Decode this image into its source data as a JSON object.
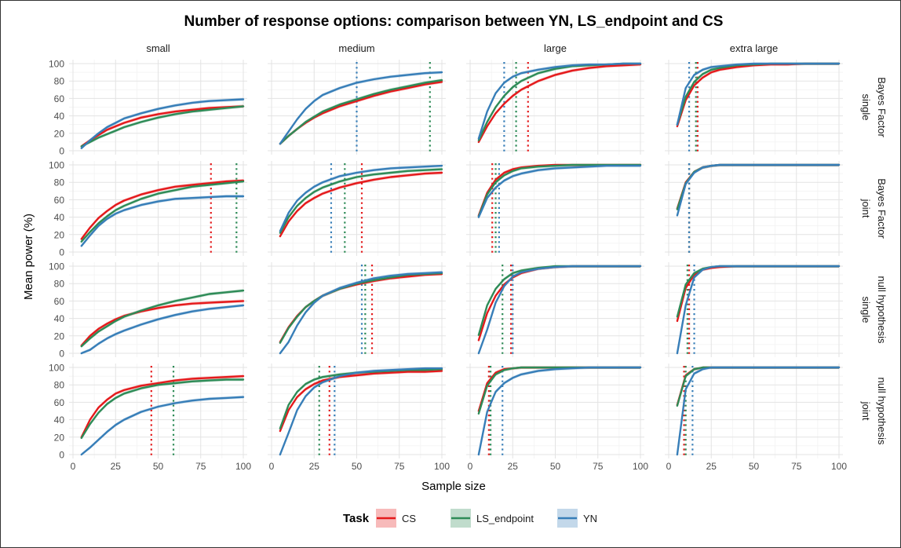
{
  "chart_data": {
    "type": "line",
    "title": "Number of response options: comparison between YN, LS_endpoint and CS",
    "xlabel": "Sample size",
    "ylabel": "Mean power (%)",
    "xlim": [
      0,
      100
    ],
    "ylim": [
      0,
      100
    ],
    "x_ticks": [
      0,
      25,
      50,
      75,
      100
    ],
    "y_ticks": [
      0,
      20,
      40,
      60,
      80,
      100
    ],
    "grid": true,
    "legend": {
      "title": "Task",
      "position": "bottom",
      "entries": [
        "CS",
        "LS_endpoint",
        "YN"
      ]
    },
    "colors": {
      "CS": "#e41a1c",
      "LS_endpoint": "#2e8b57",
      "YN": "#377eb8"
    },
    "col_facets": [
      "small",
      "medium",
      "large",
      "extra large"
    ],
    "row_facets": [
      {
        "label1": "Bayes Factor",
        "label2": "single"
      },
      {
        "label1": "Bayes Factor",
        "label2": "joint"
      },
      {
        "label1": "null hypothesis",
        "label2": "single"
      },
      {
        "label1": "null hypothesis",
        "label2": "joint"
      }
    ],
    "x_sample": [
      5,
      10,
      15,
      20,
      25,
      30,
      40,
      50,
      60,
      70,
      80,
      90,
      100
    ],
    "panels": [
      {
        "row": 0,
        "col": 0,
        "series": [
          {
            "name": "CS",
            "y": [
              5,
              12,
              18,
              24,
              28,
              32,
              38,
              42,
              45,
              47,
              49,
              50,
              51
            ],
            "vline": null
          },
          {
            "name": "LS_endpoint",
            "y": [
              5,
              10,
              15,
              19,
              23,
              27,
              33,
              38,
              42,
              45,
              47,
              49,
              51
            ],
            "vline": null
          },
          {
            "name": "YN",
            "y": [
              3,
              12,
              20,
              27,
              32,
              37,
              43,
              48,
              52,
              55,
              57,
              58,
              59
            ],
            "vline": null
          }
        ]
      },
      {
        "row": 0,
        "col": 1,
        "series": [
          {
            "name": "CS",
            "y": [
              8,
              17,
              25,
              32,
              38,
              43,
              51,
              57,
              63,
              68,
              72,
              76,
              79
            ],
            "vline": null
          },
          {
            "name": "LS_endpoint",
            "y": [
              8,
              17,
              25,
              33,
              39,
              45,
              53,
              59,
              65,
              70,
              74,
              78,
              81
            ],
            "vline": 93
          },
          {
            "name": "YN",
            "y": [
              8,
              22,
              36,
              48,
              57,
              64,
              72,
              78,
              82,
              85,
              87,
              89,
              90
            ],
            "vline": 50
          }
        ]
      },
      {
        "row": 0,
        "col": 2,
        "series": [
          {
            "name": "CS",
            "y": [
              10,
              28,
              43,
              54,
              63,
              70,
              80,
              87,
              92,
              95,
              97,
              98,
              99
            ],
            "vline": 34
          },
          {
            "name": "LS_endpoint",
            "y": [
              12,
              33,
              50,
              63,
              73,
              80,
              89,
              94,
              97,
              98,
              99,
              100,
              100
            ],
            "vline": 27
          },
          {
            "name": "YN",
            "y": [
              14,
              45,
              66,
              78,
              85,
              89,
              93,
              96,
              98,
              99,
              99,
              100,
              100
            ],
            "vline": 20
          }
        ]
      },
      {
        "row": 0,
        "col": 3,
        "series": [
          {
            "name": "CS",
            "y": [
              28,
              58,
              75,
              84,
              90,
              93,
              96,
              98,
              99,
              99,
              100,
              100,
              100
            ],
            "vline": 17
          },
          {
            "name": "LS_endpoint",
            "y": [
              30,
              62,
              79,
              88,
              93,
              95,
              98,
              99,
              100,
              100,
              100,
              100,
              100
            ],
            "vline": 16
          },
          {
            "name": "YN",
            "y": [
              30,
              72,
              87,
              93,
              96,
              97,
              99,
              100,
              100,
              100,
              100,
              100,
              100
            ],
            "vline": 12
          }
        ]
      },
      {
        "row": 1,
        "col": 0,
        "series": [
          {
            "name": "CS",
            "y": [
              15,
              28,
              39,
              47,
              54,
              59,
              66,
              71,
              75,
              77,
              79,
              81,
              82
            ],
            "vline": 81
          },
          {
            "name": "LS_endpoint",
            "y": [
              12,
              23,
              33,
              41,
              48,
              53,
              61,
              67,
              71,
              75,
              77,
              79,
              81
            ],
            "vline": 96
          },
          {
            "name": "YN",
            "y": [
              7,
              19,
              30,
              38,
              44,
              48,
              54,
              58,
              61,
              62,
              63,
              64,
              64
            ],
            "vline": null
          }
        ]
      },
      {
        "row": 1,
        "col": 1,
        "series": [
          {
            "name": "CS",
            "y": [
              18,
              35,
              47,
              56,
              62,
              67,
              74,
              79,
              83,
              86,
              88,
              90,
              91
            ],
            "vline": 53
          },
          {
            "name": "LS_endpoint",
            "y": [
              22,
              40,
              53,
              62,
              69,
              74,
              81,
              86,
              89,
              91,
              93,
              94,
              95
            ],
            "vline": 43
          },
          {
            "name": "YN",
            "y": [
              24,
              45,
              59,
              68,
              75,
              80,
              87,
              91,
              94,
              96,
              97,
              98,
              99
            ],
            "vline": 35
          }
        ]
      },
      {
        "row": 1,
        "col": 2,
        "series": [
          {
            "name": "CS",
            "y": [
              42,
              68,
              83,
              91,
              95,
              97,
              99,
              100,
              100,
              100,
              100,
              100,
              100
            ],
            "vline": 13
          },
          {
            "name": "LS_endpoint",
            "y": [
              41,
              66,
              80,
              88,
              93,
              96,
              98,
              99,
              100,
              100,
              100,
              100,
              100
            ],
            "vline": 15
          },
          {
            "name": "YN",
            "y": [
              40,
              62,
              74,
              82,
              87,
              90,
              94,
              96,
              97,
              98,
              99,
              99,
              99
            ],
            "vline": 17
          }
        ]
      },
      {
        "row": 1,
        "col": 3,
        "series": [
          {
            "name": "CS",
            "y": [
              50,
              80,
              92,
              97,
              99,
              100,
              100,
              100,
              100,
              100,
              100,
              100,
              100
            ],
            "vline": 12
          },
          {
            "name": "LS_endpoint",
            "y": [
              49,
              79,
              92,
              97,
              99,
              100,
              100,
              100,
              100,
              100,
              100,
              100,
              100
            ],
            "vline": 12
          },
          {
            "name": "YN",
            "y": [
              42,
              78,
              91,
              97,
              99,
              100,
              100,
              100,
              100,
              100,
              100,
              100,
              100
            ],
            "vline": 12
          }
        ]
      },
      {
        "row": 2,
        "col": 0,
        "series": [
          {
            "name": "CS",
            "y": [
              9,
              20,
              28,
              34,
              39,
              43,
              48,
              52,
              55,
              57,
              58,
              59,
              60
            ],
            "vline": null
          },
          {
            "name": "LS_endpoint",
            "y": [
              8,
              17,
              25,
              31,
              37,
              42,
              49,
              55,
              60,
              64,
              68,
              70,
              72
            ],
            "vline": null
          },
          {
            "name": "YN",
            "y": [
              0,
              4,
              11,
              17,
              22,
              26,
              33,
              39,
              44,
              48,
              51,
              53,
              55
            ],
            "vline": null
          }
        ]
      },
      {
        "row": 2,
        "col": 1,
        "series": [
          {
            "name": "CS",
            "y": [
              13,
              30,
              43,
              53,
              60,
              66,
              74,
              79,
              83,
              86,
              88,
              90,
              91
            ],
            "vline": 59
          },
          {
            "name": "LS_endpoint",
            "y": [
              12,
              29,
              42,
              53,
              60,
              66,
              74,
              80,
              84,
              87,
              90,
              91,
              92
            ],
            "vline": 55
          },
          {
            "name": "YN",
            "y": [
              0,
              13,
              32,
              47,
              58,
              66,
              75,
              81,
              86,
              89,
              91,
              92,
              93
            ],
            "vline": 53
          }
        ]
      },
      {
        "row": 2,
        "col": 2,
        "series": [
          {
            "name": "CS",
            "y": [
              15,
              46,
              66,
              79,
              87,
              92,
              97,
              99,
              100,
              100,
              100,
              100,
              100
            ],
            "vline": 24
          },
          {
            "name": "LS_endpoint",
            "y": [
              21,
              55,
              74,
              85,
              92,
              95,
              98,
              100,
              100,
              100,
              100,
              100,
              100
            ],
            "vline": 19
          },
          {
            "name": "YN",
            "y": [
              0,
              27,
              58,
              77,
              88,
              93,
              97,
              99,
              100,
              100,
              100,
              100,
              100
            ],
            "vline": 25
          }
        ]
      },
      {
        "row": 2,
        "col": 3,
        "series": [
          {
            "name": "CS",
            "y": [
              37,
              75,
              90,
              96,
              98,
              99,
              100,
              100,
              100,
              100,
              100,
              100,
              100
            ],
            "vline": 12
          },
          {
            "name": "LS_endpoint",
            "y": [
              42,
              79,
              92,
              97,
              99,
              100,
              100,
              100,
              100,
              100,
              100,
              100,
              100
            ],
            "vline": 11
          },
          {
            "name": "YN",
            "y": [
              0,
              55,
              87,
              96,
              99,
              100,
              100,
              100,
              100,
              100,
              100,
              100,
              100
            ],
            "vline": 15
          }
        ]
      },
      {
        "row": 3,
        "col": 0,
        "series": [
          {
            "name": "CS",
            "y": [
              20,
              40,
              54,
              63,
              70,
              74,
              79,
              82,
              85,
              87,
              88,
              89,
              90
            ],
            "vline": 46
          },
          {
            "name": "LS_endpoint",
            "y": [
              19,
              35,
              48,
              58,
              65,
              70,
              76,
              80,
              82,
              84,
              85,
              86,
              86
            ],
            "vline": 59
          },
          {
            "name": "YN",
            "y": [
              0,
              8,
              17,
              26,
              34,
              40,
              49,
              55,
              59,
              62,
              64,
              65,
              66
            ],
            "vline": null
          }
        ]
      },
      {
        "row": 3,
        "col": 1,
        "series": [
          {
            "name": "CS",
            "y": [
              27,
              51,
              66,
              75,
              81,
              85,
              89,
              91,
              93,
              94,
              95,
              95,
              96
            ],
            "vline": 34
          },
          {
            "name": "LS_endpoint",
            "y": [
              30,
              57,
              72,
              81,
              86,
              89,
              92,
              94,
              95,
              96,
              97,
              97,
              98
            ],
            "vline": 28
          },
          {
            "name": "YN",
            "y": [
              0,
              25,
              51,
              67,
              77,
              83,
              90,
              94,
              96,
              97,
              98,
              99,
              99
            ],
            "vline": 37
          }
        ]
      },
      {
        "row": 3,
        "col": 2,
        "series": [
          {
            "name": "CS",
            "y": [
              50,
              82,
              94,
              98,
              99,
              100,
              100,
              100,
              100,
              100,
              100,
              100,
              100
            ],
            "vline": 11
          },
          {
            "name": "LS_endpoint",
            "y": [
              47,
              79,
              92,
              97,
              99,
              100,
              100,
              100,
              100,
              100,
              100,
              100,
              100
            ],
            "vline": 12
          },
          {
            "name": "YN",
            "y": [
              0,
              49,
              72,
              82,
              88,
              92,
              96,
              98,
              99,
              100,
              100,
              100,
              100
            ],
            "vline": 19
          }
        ]
      },
      {
        "row": 3,
        "col": 3,
        "series": [
          {
            "name": "CS",
            "y": [
              57,
              91,
              98,
              100,
              100,
              100,
              100,
              100,
              100,
              100,
              100,
              100,
              100
            ],
            "vline": 9
          },
          {
            "name": "LS_endpoint",
            "y": [
              56,
              90,
              98,
              100,
              100,
              100,
              100,
              100,
              100,
              100,
              100,
              100,
              100
            ],
            "vline": 10
          },
          {
            "name": "YN",
            "y": [
              0,
              75,
              93,
              98,
              100,
              100,
              100,
              100,
              100,
              100,
              100,
              100,
              100
            ],
            "vline": 14
          }
        ]
      }
    ]
  }
}
